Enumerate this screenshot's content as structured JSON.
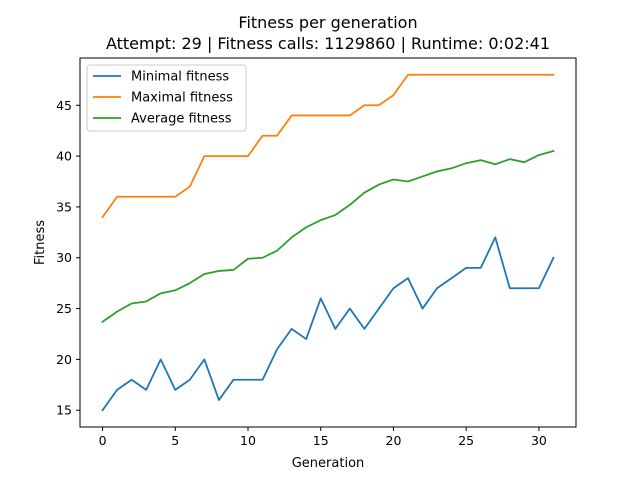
{
  "chart_data": {
    "type": "line",
    "title": "Fitness per generation",
    "subtitle": "Attempt: 29 | Fitness calls: 1129860 | Runtime: 0:02:41",
    "xlabel": "Generation",
    "ylabel": "Fitness",
    "x": [
      0,
      1,
      2,
      3,
      4,
      5,
      6,
      7,
      8,
      9,
      10,
      11,
      12,
      13,
      14,
      15,
      16,
      17,
      18,
      19,
      20,
      21,
      22,
      23,
      24,
      25,
      26,
      27,
      28,
      29,
      30,
      31
    ],
    "xlim": [
      -1.55,
      32.55
    ],
    "ylim": [
      13.35,
      49.65
    ],
    "xticks": [
      0,
      5,
      10,
      15,
      20,
      25,
      30
    ],
    "yticks": [
      15,
      20,
      25,
      30,
      35,
      40,
      45
    ],
    "grid": false,
    "legend_position": "top-left",
    "series": [
      {
        "name": "Minimal fitness",
        "color": "#1f77b4",
        "values": [
          15,
          17,
          18,
          17,
          20,
          17,
          18,
          20,
          16,
          18,
          18,
          18,
          21,
          23,
          22,
          26,
          23,
          25,
          23,
          25,
          27,
          28,
          25,
          27,
          28,
          29,
          29,
          32,
          27,
          27,
          27,
          30
        ]
      },
      {
        "name": "Maximal fitness",
        "color": "#ff7f0e",
        "values": [
          34,
          36,
          36,
          36,
          36,
          36,
          37,
          40,
          40,
          40,
          40,
          42,
          42,
          44,
          44,
          44,
          44,
          44,
          45,
          45,
          46,
          48,
          48,
          48,
          48,
          48,
          48,
          48,
          48,
          48,
          48,
          48
        ]
      },
      {
        "name": "Average fitness",
        "color": "#2ca02c",
        "values": [
          23.7,
          24.7,
          25.5,
          25.7,
          26.5,
          26.8,
          27.5,
          28.4,
          28.7,
          28.8,
          29.9,
          30.0,
          30.7,
          32.0,
          33.0,
          33.7,
          34.2,
          35.2,
          36.4,
          37.2,
          37.7,
          37.5,
          38.0,
          38.5,
          38.8,
          39.3,
          39.6,
          39.2,
          39.7,
          39.4,
          40.1,
          40.5
        ]
      }
    ]
  }
}
